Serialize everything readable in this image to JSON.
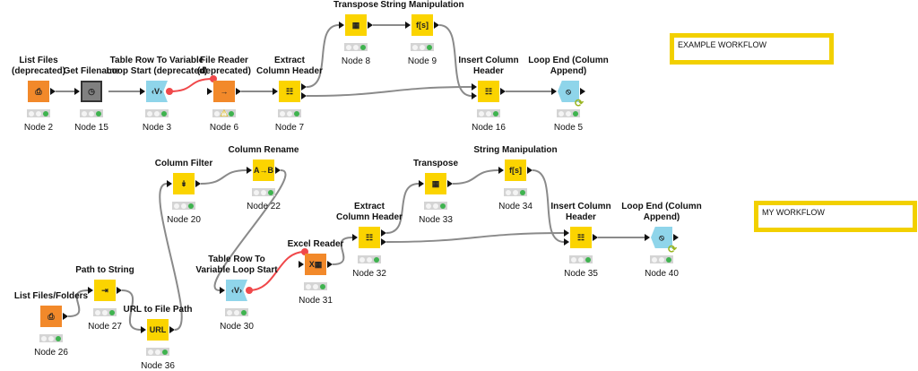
{
  "colors": {
    "source": "#f2892a",
    "manipulator": "#fbd400",
    "loop": "#8fd5ea",
    "other": "#808080",
    "flow": "#f0484a",
    "edge": "#8a8a8a",
    "annotation": "#f2d000"
  },
  "annotations": [
    {
      "text": "EXAMPLE WORKFLOW"
    },
    {
      "text": "MY WORKFLOW"
    }
  ],
  "nodes": [
    {
      "id": "2",
      "title": "List Files\n(deprecated)",
      "label": "Node 2",
      "kind": "source",
      "glyph": "⎙"
    },
    {
      "id": "15",
      "title": "Get Filename",
      "label": "Node 15",
      "kind": "other",
      "glyph": "◷"
    },
    {
      "id": "3",
      "title": "Table Row To Variable\nLoop Start (deprecated)",
      "label": "Node 3",
      "kind": "loop",
      "glyph": "‹V›"
    },
    {
      "id": "6",
      "title": "File Reader\n(deprecated)",
      "label": "Node 6",
      "kind": "source",
      "glyph": "→",
      "warning": true
    },
    {
      "id": "7",
      "title": "Extract\nColumn Header",
      "label": "Node 7",
      "kind": "manipulator",
      "glyph": "☷"
    },
    {
      "id": "8",
      "title": "Transpose",
      "label": "Node 8",
      "kind": "manipulator",
      "glyph": "▦"
    },
    {
      "id": "9",
      "title": "String Manipulation",
      "label": "Node 9",
      "kind": "manipulator",
      "glyph": "f[s]"
    },
    {
      "id": "16",
      "title": "Insert Column\nHeader",
      "label": "Node 16",
      "kind": "manipulator",
      "glyph": "☷"
    },
    {
      "id": "5",
      "title": "Loop End (Column\nAppend)",
      "label": "Node 5",
      "kind": "loop",
      "glyph": "⦸",
      "loopEnd": true
    },
    {
      "id": "20",
      "title": "Column Filter",
      "label": "Node 20",
      "kind": "manipulator",
      "glyph": "↡"
    },
    {
      "id": "22",
      "title": "Column Rename",
      "label": "Node 22",
      "kind": "manipulator",
      "glyph": "A→B"
    },
    {
      "id": "26",
      "title": "List Files/Folders",
      "label": "Node 26",
      "kind": "source",
      "glyph": "⎙"
    },
    {
      "id": "27",
      "title": "Path to String",
      "label": "Node 27",
      "kind": "manipulator",
      "glyph": "⇥"
    },
    {
      "id": "36",
      "title": "URL to File Path",
      "label": "Node 36",
      "kind": "manipulator",
      "glyph": "URL"
    },
    {
      "id": "30",
      "title": "Table Row To\nVariable Loop Start",
      "label": "Node 30",
      "kind": "loop",
      "glyph": "‹V›"
    },
    {
      "id": "31",
      "title": "Excel Reader",
      "label": "Node 31",
      "kind": "source",
      "glyph": "X▦"
    },
    {
      "id": "32",
      "title": "Extract\nColumn Header",
      "label": "Node 32",
      "kind": "manipulator",
      "glyph": "☷"
    },
    {
      "id": "33",
      "title": "Transpose",
      "label": "Node 33",
      "kind": "manipulator",
      "glyph": "▦"
    },
    {
      "id": "34",
      "title": "String Manipulation",
      "label": "Node 34",
      "kind": "manipulator",
      "glyph": "f[s]"
    },
    {
      "id": "35",
      "title": "Insert Column\nHeader",
      "label": "Node 35",
      "kind": "manipulator",
      "glyph": "☷"
    },
    {
      "id": "40",
      "title": "Loop End (Column\nAppend)",
      "label": "Node 40",
      "kind": "loop",
      "glyph": "⦸",
      "loopEnd": true
    }
  ],
  "connections": [
    {
      "from": "2",
      "to": "15"
    },
    {
      "from": "15",
      "to": "3"
    },
    {
      "from": "3",
      "to": "6",
      "flow": true
    },
    {
      "from": "6",
      "to": "7"
    },
    {
      "from": "7",
      "out": 0,
      "to": "8"
    },
    {
      "from": "7",
      "out": 1,
      "to": "16",
      "in": 0
    },
    {
      "from": "8",
      "to": "9"
    },
    {
      "from": "9",
      "to": "16",
      "in": 1
    },
    {
      "from": "16",
      "to": "5"
    },
    {
      "from": "26",
      "to": "27"
    },
    {
      "from": "27",
      "to": "36"
    },
    {
      "from": "36",
      "to": "20"
    },
    {
      "from": "20",
      "to": "22"
    },
    {
      "from": "22",
      "to": "30"
    },
    {
      "from": "30",
      "to": "31",
      "flow": true
    },
    {
      "from": "31",
      "to": "32"
    },
    {
      "from": "32",
      "out": 0,
      "to": "33"
    },
    {
      "from": "32",
      "out": 1,
      "to": "35",
      "in": 0
    },
    {
      "from": "33",
      "to": "34"
    },
    {
      "from": "34",
      "to": "35",
      "in": 1
    },
    {
      "from": "35",
      "to": "40"
    }
  ]
}
